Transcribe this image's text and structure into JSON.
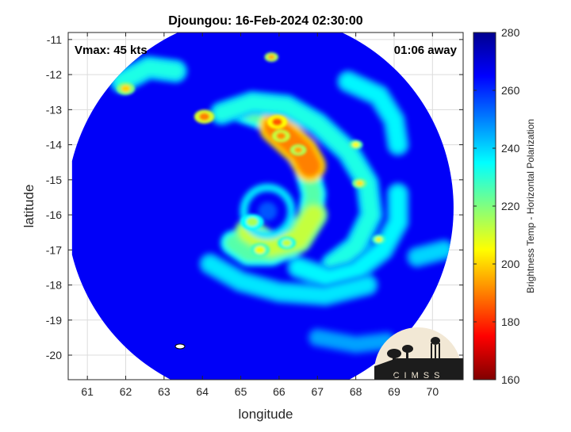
{
  "chart_data": {
    "type": "heatmap",
    "title": "Djoungou: 16-Feb-2024 02:30:00",
    "xlabel": "longitude",
    "ylabel": "latitude",
    "xlim": [
      60.5,
      70.8
    ],
    "ylim": [
      -20.7,
      -10.8
    ],
    "x_ticks": [
      61,
      62,
      63,
      64,
      65,
      66,
      67,
      68,
      69,
      70
    ],
    "y_ticks": [
      -11,
      -12,
      -13,
      -14,
      -15,
      -16,
      -17,
      -18,
      -19,
      -20
    ],
    "grid": true,
    "annotations": {
      "vmax": "Vmax: 45 kts",
      "time_offset": "01:06 away"
    },
    "colorbar": {
      "label": "Brightness Temp - Horizontal Polarization",
      "min": 160,
      "max": 280,
      "ticks": [
        160,
        180,
        200,
        220,
        240,
        260,
        280
      ]
    },
    "swath": {
      "center_lon": 65.5,
      "center_lat": -15.8,
      "radius_deg": 5.05,
      "west_cut_lon": 60.6,
      "background_tb": 266
    },
    "storm": {
      "center_lon": 65.7,
      "center_lat": -15.9,
      "eye_tb": 255,
      "bands": [
        {
          "points": [
            [
              65.0,
              -13.0
            ],
            [
              65.8,
              -13.3
            ],
            [
              66.3,
              -13.9
            ],
            [
              66.7,
              -14.6
            ],
            [
              66.9,
              -15.4
            ],
            [
              66.8,
              -16.2
            ],
            [
              66.4,
              -16.8
            ],
            [
              65.8,
              -17.1
            ],
            [
              65.2,
              -17.1
            ],
            [
              64.8,
              -16.8
            ]
          ],
          "tb": 225
        },
        {
          "points": [
            [
              65.9,
              -13.5
            ],
            [
              66.2,
              -13.8
            ],
            [
              66.6,
              -14.2
            ],
            [
              66.8,
              -14.6
            ]
          ],
          "tb": 190
        },
        {
          "points": [
            [
              65.2,
              -16.5
            ],
            [
              65.8,
              -16.9
            ],
            [
              66.5,
              -16.7
            ],
            [
              66.9,
              -16.0
            ]
          ],
          "tb": 212
        },
        {
          "points": [
            [
              64.5,
              -13.1
            ],
            [
              65.3,
              -12.8
            ],
            [
              66.2,
              -12.9
            ],
            [
              67.0,
              -13.4
            ],
            [
              67.8,
              -14.2
            ],
            [
              68.3,
              -15.1
            ],
            [
              68.4,
              -16.0
            ],
            [
              68.0,
              -16.9
            ],
            [
              67.4,
              -17.4
            ]
          ],
          "tb": 232
        },
        {
          "points": [
            [
              66.5,
              -17.5
            ],
            [
              67.3,
              -17.8
            ],
            [
              68.0,
              -17.6
            ],
            [
              68.7,
              -17.0
            ],
            [
              69.1,
              -16.2
            ],
            [
              69.1,
              -15.4
            ]
          ],
          "tb": 236
        },
        {
          "points": [
            [
              64.2,
              -17.4
            ],
            [
              65.0,
              -17.9
            ],
            [
              66.0,
              -18.2
            ],
            [
              67.2,
              -18.3
            ],
            [
              68.3,
              -18.0
            ]
          ],
          "tb": 238
        },
        {
          "points": [
            [
              61.9,
              -12.2
            ],
            [
              62.6,
              -11.8
            ],
            [
              63.3,
              -11.9
            ]
          ],
          "tb": 232
        },
        {
          "points": [
            [
              67.8,
              -12.2
            ],
            [
              68.6,
              -12.6
            ],
            [
              69.0,
              -13.3
            ],
            [
              69.1,
              -14.0
            ]
          ],
          "tb": 236
        },
        {
          "points": [
            [
              67.0,
              -19.5
            ],
            [
              68.0,
              -19.7
            ],
            [
              68.8,
              -19.6
            ]
          ],
          "tb": 246
        },
        {
          "points": [
            [
              69.6,
              -17.2
            ],
            [
              70.3,
              -17.0
            ]
          ],
          "tb": 240
        }
      ],
      "cells": [
        {
          "lon": 65.95,
          "lat": -13.35,
          "tb": 185,
          "r": 0.22
        },
        {
          "lon": 64.05,
          "lat": -13.2,
          "tb": 190,
          "r": 0.22
        },
        {
          "lon": 66.05,
          "lat": -13.75,
          "tb": 192,
          "r": 0.2
        },
        {
          "lon": 66.5,
          "lat": -14.15,
          "tb": 195,
          "r": 0.18
        },
        {
          "lon": 65.8,
          "lat": -11.5,
          "tb": 196,
          "r": 0.15
        },
        {
          "lon": 62.0,
          "lat": -12.4,
          "tb": 200,
          "r": 0.2
        },
        {
          "lon": 68.1,
          "lat": -15.1,
          "tb": 202,
          "r": 0.16
        },
        {
          "lon": 68.0,
          "lat": -14.0,
          "tb": 205,
          "r": 0.15
        },
        {
          "lon": 65.5,
          "lat": -17.0,
          "tb": 207,
          "r": 0.22
        },
        {
          "lon": 68.6,
          "lat": -16.7,
          "tb": 208,
          "r": 0.15
        },
        {
          "lon": 65.3,
          "lat": -16.2,
          "tb": 215,
          "r": 0.25
        },
        {
          "lon": 66.2,
          "lat": -16.8,
          "tb": 212,
          "r": 0.2
        }
      ]
    }
  },
  "logo": {
    "text": "CIMSS"
  },
  "colors": {
    "colormap": [
      "#800000",
      "#ff0000",
      "#ff8000",
      "#ffff00",
      "#80ff80",
      "#00ffff",
      "#0080ff",
      "#0000ff",
      "#00008f"
    ],
    "axis": "#262626",
    "grid": "#dcdcdc",
    "logo_bg": "#f2e8d5",
    "logo_ink": "#1c1c1c"
  }
}
